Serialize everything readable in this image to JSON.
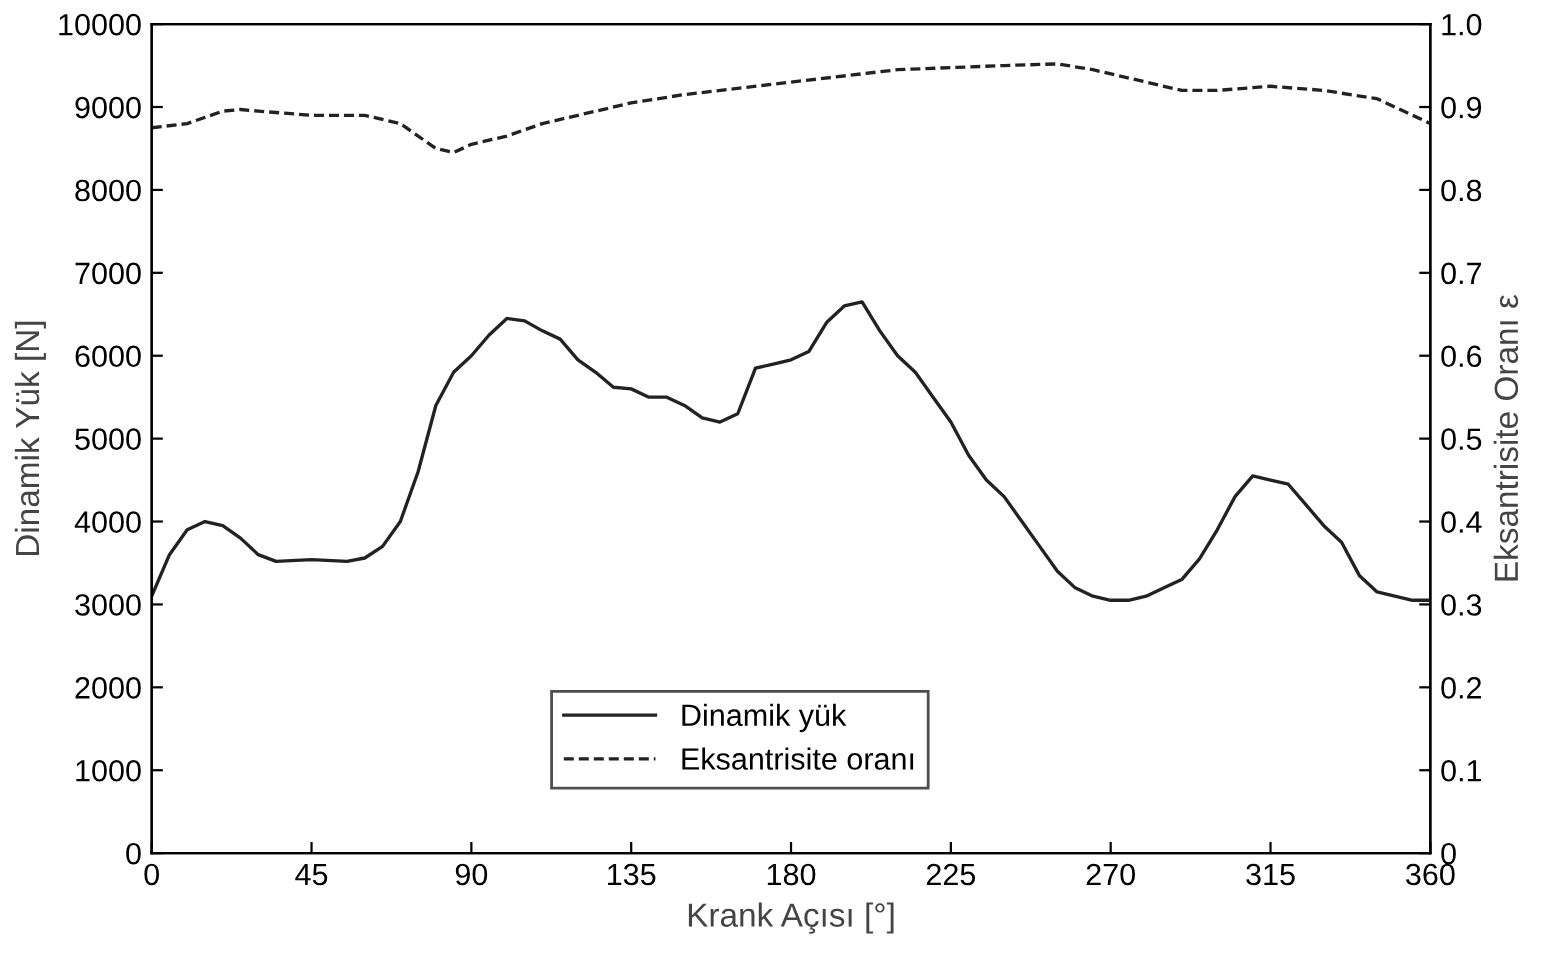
{
  "chart_data": {
    "type": "line",
    "xlabel": "Krank Açısı [°]",
    "ylabel": "Dinamik Yük [N]",
    "y2label": "Eksantrisite Oranı ε",
    "xlim": [
      0,
      360
    ],
    "xticks": [
      0,
      45,
      90,
      135,
      180,
      225,
      270,
      315,
      360
    ],
    "ylim": [
      0,
      10000
    ],
    "yticks": [
      0,
      1000,
      2000,
      3000,
      4000,
      5000,
      6000,
      7000,
      8000,
      9000,
      10000
    ],
    "y2lim": [
      0,
      1.0
    ],
    "y2ticks": [
      {
        "value": 0,
        "label": "0"
      },
      0.1,
      0.2,
      0.3,
      0.4,
      0.5,
      0.6,
      0.7,
      0.8,
      0.9,
      {
        "value": 1.0,
        "label": "1.0"
      }
    ],
    "legend": "bottom",
    "grid": false,
    "series": [
      {
        "name": "Dinamik yük",
        "color": "#222222",
        "line_style": "solid",
        "x": [
          0,
          5,
          10,
          15,
          20,
          25,
          30,
          35,
          45,
          55,
          60,
          65,
          70,
          75,
          80,
          85,
          90,
          95,
          100,
          105,
          110,
          115,
          120,
          125,
          130,
          135,
          140,
          145,
          150,
          155,
          160,
          165,
          170,
          175,
          180,
          185,
          190,
          195,
          200,
          205,
          210,
          215,
          220,
          225,
          230,
          235,
          240,
          245,
          250,
          255,
          260,
          265,
          270,
          275,
          280,
          285,
          290,
          295,
          300,
          305,
          310,
          315,
          320,
          325,
          330,
          335,
          340,
          345,
          350,
          355,
          360
        ],
        "values": [
          3100,
          3600,
          3900,
          4000,
          3950,
          3800,
          3600,
          3520,
          3540,
          3520,
          3560,
          3700,
          4000,
          4600,
          5400,
          5800,
          6000,
          6250,
          6450,
          6420,
          6300,
          6200,
          5950,
          5800,
          5620,
          5600,
          5500,
          5500,
          5400,
          5250,
          5200,
          5300,
          5850,
          5900,
          5950,
          6050,
          6400,
          6600,
          6650,
          6300,
          6000,
          5800,
          5500,
          5200,
          4800,
          4500,
          4300,
          4000,
          3700,
          3400,
          3200,
          3100,
          3050,
          3050,
          3100,
          3200,
          3300,
          3550,
          3900,
          4300,
          4550,
          4500,
          4450,
          4200,
          3950,
          3750,
          3350,
          3150,
          3100,
          3050,
          3050
        ]
      },
      {
        "name": "Eksantrisite oranı",
        "color": "#222222",
        "line_style": "dashed",
        "axis": "y2",
        "x": [
          0,
          10,
          20,
          25,
          30,
          45,
          60,
          70,
          80,
          85,
          90,
          100,
          110,
          120,
          135,
          150,
          180,
          210,
          240,
          255,
          265,
          280,
          290,
          300,
          315,
          330,
          345,
          360
        ],
        "values": [
          0.875,
          0.88,
          0.895,
          0.897,
          0.895,
          0.89,
          0.89,
          0.88,
          0.85,
          0.845,
          0.855,
          0.865,
          0.88,
          0.89,
          0.905,
          0.915,
          0.93,
          0.945,
          0.95,
          0.952,
          0.945,
          0.93,
          0.92,
          0.92,
          0.925,
          0.92,
          0.91,
          0.88
        ]
      }
    ]
  }
}
